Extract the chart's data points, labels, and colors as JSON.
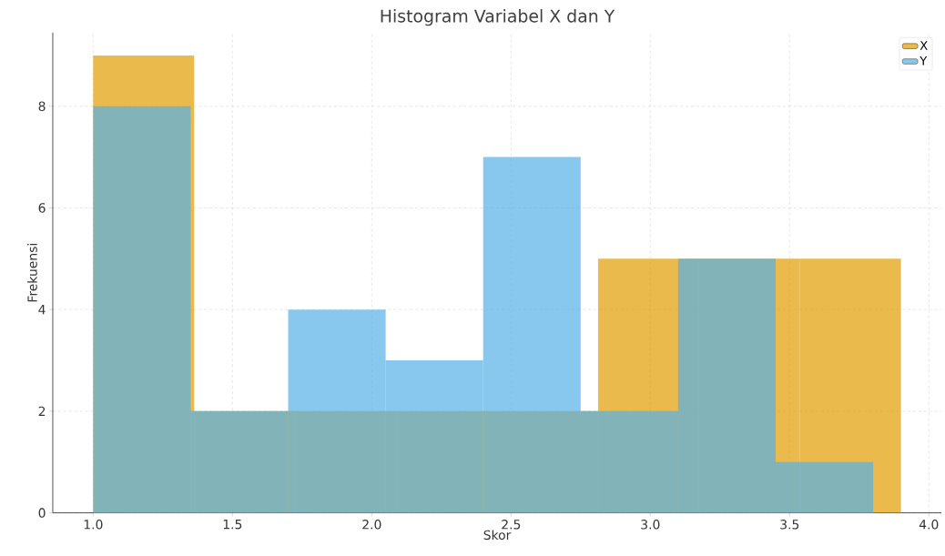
{
  "chart_data": {
    "type": "histogram",
    "title": "Histogram Variabel X dan Y",
    "xlabel": "Skor",
    "ylabel": "Frekuensi",
    "bins": [
      1.0,
      1.3625,
      1.725,
      2.0875,
      2.45,
      2.8125,
      3.175,
      3.5375,
      3.9
    ],
    "series": [
      {
        "name": "X",
        "color": "#ebba4b",
        "values": [
          9,
          2,
          2,
          2,
          2,
          5,
          5,
          5
        ]
      },
      {
        "name": "Y",
        "color": "#88c8ee",
        "bins": [
          1.0,
          1.35,
          1.7,
          2.05,
          2.4,
          2.75,
          3.1,
          3.45,
          3.8
        ],
        "values": [
          8,
          2,
          4,
          3,
          7,
          2,
          5,
          1
        ]
      }
    ],
    "xlim": [
      0.855,
      4.045
    ],
    "ylim": [
      0,
      9.45
    ],
    "xticks": [
      {
        "value": 1.0,
        "label": "1.0"
      },
      {
        "value": 1.5,
        "label": "1.5"
      },
      {
        "value": 2.0,
        "label": "2.0"
      },
      {
        "value": 2.5,
        "label": "2.5"
      },
      {
        "value": 3.0,
        "label": "3.0"
      },
      {
        "value": 3.5,
        "label": "3.5"
      },
      {
        "value": 4.0,
        "label": "4.0"
      }
    ],
    "yticks": [
      0,
      2,
      4,
      6,
      8
    ],
    "grid": true,
    "legend": "top right"
  }
}
